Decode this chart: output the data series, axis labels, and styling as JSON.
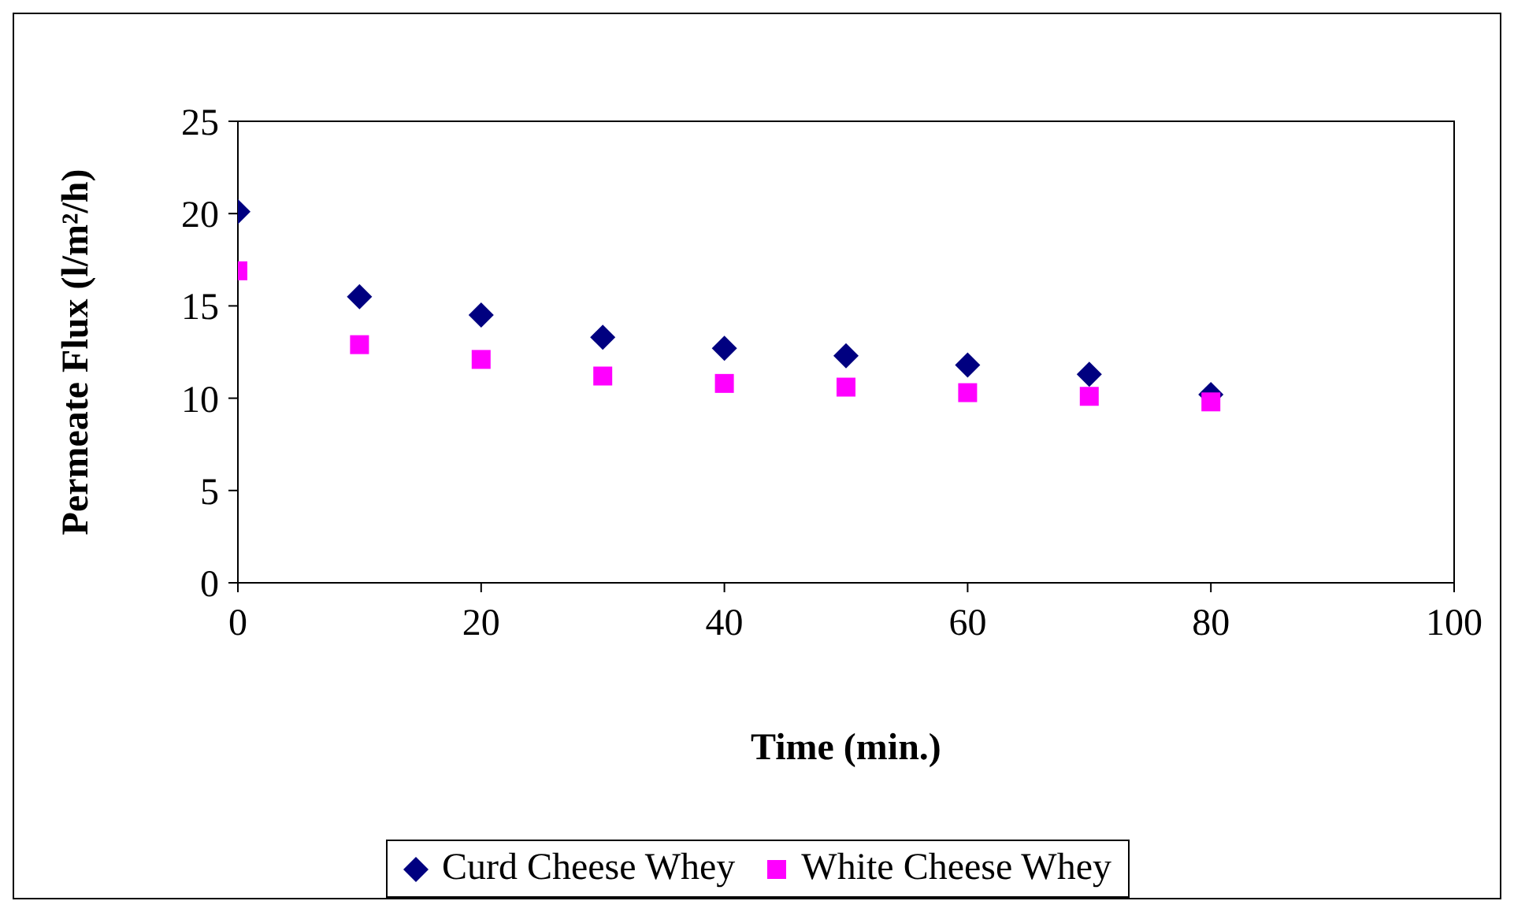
{
  "chart_data": {
    "type": "scatter",
    "xlabel": "Time (min.)",
    "ylabel": "Permeate Flux (l/m²/h)",
    "x": [
      0,
      10,
      20,
      30,
      40,
      50,
      60,
      70,
      80
    ],
    "series": [
      {
        "name": "Curd Cheese Whey",
        "color": "#000080",
        "marker": "diamond",
        "values": [
          20.1,
          15.5,
          14.5,
          13.3,
          12.7,
          12.3,
          11.8,
          11.3,
          10.2
        ]
      },
      {
        "name": "White Cheese Whey",
        "color": "#ff00ff",
        "marker": "square",
        "values": [
          16.9,
          12.9,
          12.1,
          11.2,
          10.8,
          10.6,
          10.3,
          10.1,
          9.8
        ]
      }
    ],
    "xlim": [
      0,
      100
    ],
    "xticks": [
      0,
      20,
      40,
      60,
      80,
      100
    ],
    "ylim": [
      0,
      25
    ],
    "yticks": [
      0,
      5,
      10,
      15,
      20,
      25
    ],
    "grid": false,
    "legend": "bottom"
  }
}
